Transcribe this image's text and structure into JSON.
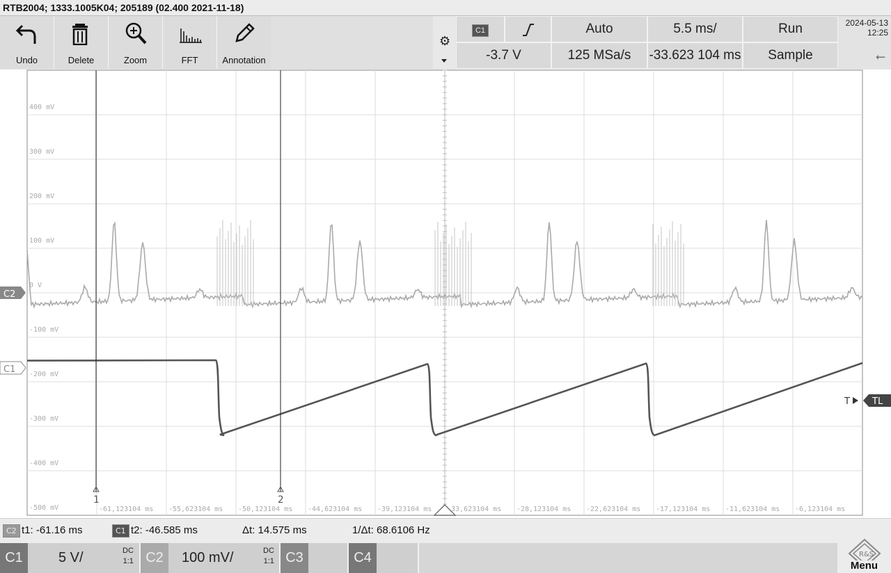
{
  "window": {
    "title": "RTB2004; 1333.1005K04; 205189 (02.400 2021-11-18)"
  },
  "toolbar": {
    "tools": [
      {
        "label": "Undo",
        "icon": "undo-icon"
      },
      {
        "label": "Delete",
        "icon": "trash-icon"
      },
      {
        "label": "Zoom",
        "icon": "zoom-icon"
      },
      {
        "label": "FFT",
        "icon": "fft-icon"
      },
      {
        "label": "Annotation",
        "icon": "pencil-icon"
      }
    ]
  },
  "trigger": {
    "source": "C1",
    "slope_icon": "rising-edge-icon",
    "mode": "Auto",
    "timebase": "5.5 ms/",
    "run_state": "Run",
    "level": "-3.7 V",
    "sample_rate": "125 MSa/s",
    "position": "-33.623 104 ms",
    "acquisition": "Sample"
  },
  "status": {
    "date": "2024-05-13",
    "time": "12:25",
    "usb_icon": "usb-icon"
  },
  "plot": {
    "y_labels": [
      "400 mV",
      "300 mV",
      "200 mV",
      "100 mV",
      "0 V",
      "-100 mV",
      "-200 mV",
      "-300 mV",
      "-400 mV",
      "-500 mV"
    ],
    "x_labels": [
      "-61,123104 ms",
      "-55,623104 ms",
      "-50,123104 ms",
      "-44,623104 ms",
      "-39,123104 ms",
      "-33,623104 ms",
      "-28,123104 ms",
      "-22,623104 ms",
      "-17,123104 ms",
      "-11,623104 ms",
      "-6,123104 ms"
    ],
    "channel_markers": [
      "C2",
      "C1"
    ],
    "trigger_marker": "TL",
    "trigger_arrow": "T",
    "cursor_labels": [
      "1",
      "2"
    ]
  },
  "measure": {
    "t1_channel": "C2",
    "t1": "t1: -61.16 ms",
    "t2_channel": "C1",
    "t2": "t2: -46.585 ms",
    "dt": "Δt: 14.575 ms",
    "inv_dt": "1/Δt: 68.6106 Hz"
  },
  "channels": [
    {
      "name": "C1",
      "scale": "5 V/",
      "coupling": "DC",
      "probe": "1:1"
    },
    {
      "name": "C2",
      "scale": "100 mV/",
      "coupling": "DC",
      "probe": "1:1"
    },
    {
      "name": "C3"
    },
    {
      "name": "C4"
    }
  ],
  "menu": {
    "label": "Menu",
    "logo_text": "R&S"
  }
}
